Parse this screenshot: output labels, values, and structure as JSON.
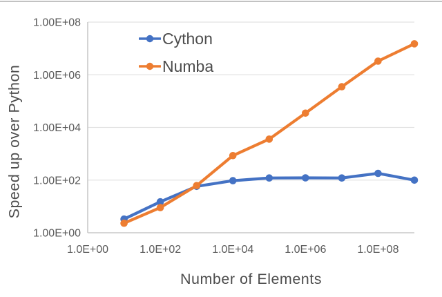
{
  "page": {
    "background_color": "#ffffff",
    "top_border_color": "#c2c2c2"
  },
  "chart_data": {
    "type": "line",
    "x_scale": "log",
    "y_scale": "log",
    "title": "",
    "xlabel": "Number of Elements",
    "ylabel": "Speed up over Python",
    "xlim": [
      1,
      1000000000
    ],
    "ylim": [
      1,
      100000000
    ],
    "grid": "horizontal-only",
    "legend_position": "inside-top-left",
    "x": [
      10,
      100,
      1000,
      10000,
      100000,
      1000000,
      10000000,
      100000000,
      1000000000
    ],
    "series": [
      {
        "name": "Cython",
        "color": "#4472C4",
        "values": [
          3.3,
          15,
          58,
          95,
          120,
          122,
          120,
          180,
          100
        ]
      },
      {
        "name": "Numba",
        "color": "#ED7D31",
        "values": [
          2.3,
          9,
          62,
          850,
          3600,
          35000,
          350000,
          3300000,
          15000000
        ]
      }
    ],
    "x_ticks": [
      {
        "value": 1,
        "label": "1.0E+00"
      },
      {
        "value": 100,
        "label": "1.0E+02"
      },
      {
        "value": 10000,
        "label": "1.0E+04"
      },
      {
        "value": 1000000,
        "label": "1.0E+06"
      },
      {
        "value": 100000000,
        "label": "1.0E+08"
      }
    ],
    "y_ticks": [
      {
        "value": 1,
        "label": "1.00E+00"
      },
      {
        "value": 100,
        "label": "1.00E+02"
      },
      {
        "value": 10000,
        "label": "1.00E+04"
      },
      {
        "value": 1000000,
        "label": "1.00E+06"
      },
      {
        "value": 100000000,
        "label": "1.00E+08"
      }
    ],
    "colors": {
      "tick_text": "#595959",
      "title_text": "#4d4d4d",
      "gridline": "#e2e2e2",
      "axis_line": "#c9c9c9"
    }
  }
}
